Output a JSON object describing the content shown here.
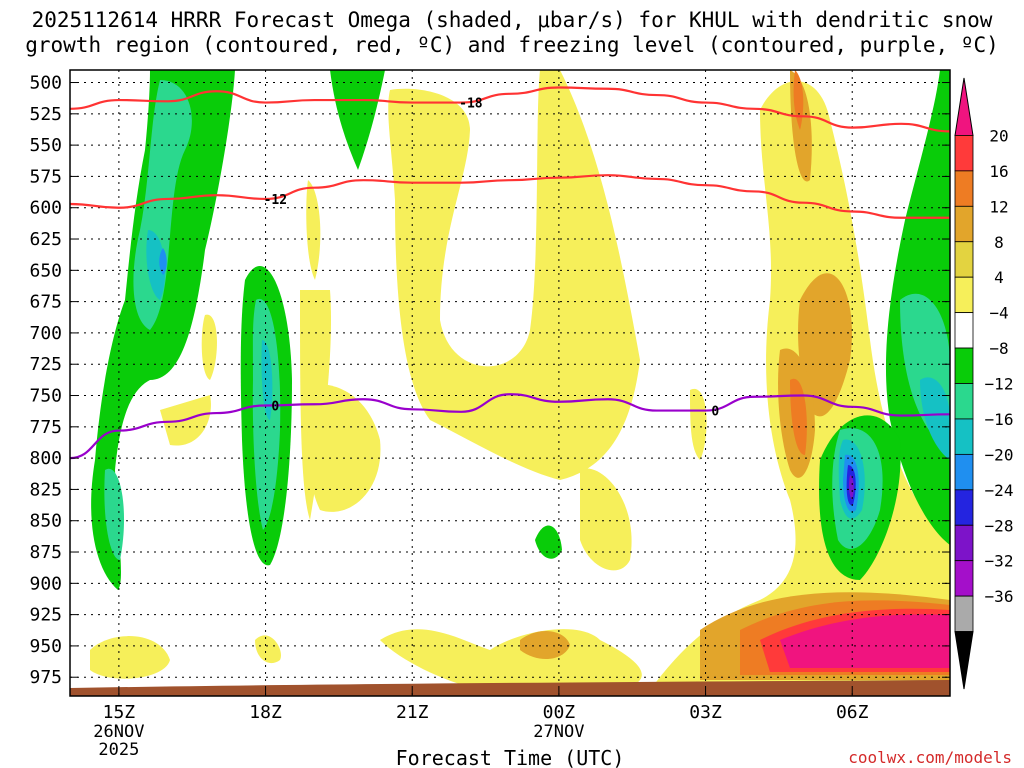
{
  "title_line1": "2025112614 HRRR Forecast Omega (shaded, μbar/s) for KHUL with dendritic snow",
  "title_line2": "growth region (contoured, red, ºC) and freezing level (contoured, purple, ºC)",
  "watermark": "coolwx.com/models",
  "chart_data": {
    "type": "contour",
    "title": "2025112614 HRRR Forecast Omega (shaded, μbar/s) for KHUL with dendritic snow growth region (contoured, red, ºC) and freezing level (contoured, purple, ºC)",
    "xlabel": "Forecast Time (UTC)",
    "ylabel": "",
    "x_range_hours_after_14Z": [
      0,
      18
    ],
    "y_axis": {
      "reversed": true,
      "ticks": [
        500,
        525,
        550,
        575,
        600,
        625,
        650,
        675,
        700,
        725,
        750,
        775,
        800,
        825,
        850,
        875,
        900,
        925,
        950,
        975
      ],
      "range_hPa": [
        490,
        990
      ]
    },
    "x_ticks": [
      {
        "hour": 1,
        "label": "15Z",
        "sub1": "26NOV",
        "sub2": "2025"
      },
      {
        "hour": 4,
        "label": "18Z",
        "sub1": "",
        "sub2": ""
      },
      {
        "hour": 7,
        "label": "21Z",
        "sub1": "",
        "sub2": ""
      },
      {
        "hour": 10,
        "label": "00Z",
        "sub1": "27NOV",
        "sub2": ""
      },
      {
        "hour": 13,
        "label": "03Z",
        "sub1": "",
        "sub2": ""
      },
      {
        "hour": 16,
        "label": "06Z",
        "sub1": "",
        "sub2": ""
      }
    ],
    "grid": true,
    "colorbar": {
      "labels": [
        "20",
        "16",
        "12",
        "8",
        "4",
        "−4",
        "−8",
        "−12",
        "−16",
        "−20",
        "−24",
        "−28",
        "−32",
        "−36"
      ],
      "colors": [
        "#f0147f",
        "#ff3a3a",
        "#ee7c23",
        "#e2a52b",
        "#e3d340",
        "#f6ef5a",
        "#ffffff",
        "#09cc09",
        "#2bd88e",
        "#15c1c4",
        "#1f8ff0",
        "#2424e0",
        "#7d13c9",
        "#a40fca",
        "#aaaaaa",
        "#000000"
      ]
    },
    "series": [
      {
        "name": "-18",
        "color": "#ff3333",
        "points": [
          [
            0,
            521
          ],
          [
            1,
            514
          ],
          [
            2,
            515
          ],
          [
            3,
            507
          ],
          [
            4,
            516
          ],
          [
            5,
            514
          ],
          [
            6,
            514
          ],
          [
            7,
            516
          ],
          [
            8,
            516
          ],
          [
            9,
            509
          ],
          [
            10,
            504
          ],
          [
            11,
            505
          ],
          [
            12,
            510
          ],
          [
            13,
            516
          ],
          [
            14,
            521
          ],
          [
            15,
            527
          ],
          [
            16,
            536
          ],
          [
            17,
            533
          ],
          [
            18,
            539
          ]
        ]
      },
      {
        "name": "-12",
        "color": "#ff3333",
        "points": [
          [
            0,
            597
          ],
          [
            1,
            600
          ],
          [
            2,
            593
          ],
          [
            3,
            590
          ],
          [
            4,
            593
          ],
          [
            5,
            584
          ],
          [
            6,
            578
          ],
          [
            7,
            580
          ],
          [
            8,
            580
          ],
          [
            9,
            578
          ],
          [
            10,
            576
          ],
          [
            11,
            574
          ],
          [
            12,
            577
          ],
          [
            13,
            582
          ],
          [
            14,
            587
          ],
          [
            15,
            596
          ],
          [
            16,
            603
          ],
          [
            17,
            608
          ],
          [
            18,
            608
          ]
        ]
      },
      {
        "name": "0",
        "color": "#9900cc",
        "points": [
          [
            0,
            800
          ],
          [
            1,
            778
          ],
          [
            2,
            771
          ],
          [
            3,
            764
          ],
          [
            4,
            758
          ],
          [
            5,
            757
          ],
          [
            6,
            753
          ],
          [
            7,
            761
          ],
          [
            8,
            763
          ],
          [
            9,
            749
          ],
          [
            10,
            755
          ],
          [
            11,
            753
          ],
          [
            12,
            762
          ],
          [
            13,
            762
          ],
          [
            14,
            751
          ],
          [
            15,
            750
          ],
          [
            16,
            759
          ],
          [
            17,
            766
          ],
          [
            18,
            765
          ]
        ]
      }
    ],
    "filled_regions": [
      {
        "value": "−4",
        "color": "#09cc09",
        "description": "negative omega band near 15Z, 500–880 hPa"
      },
      {
        "value": "−12",
        "color": "#15c1c4",
        "description": "core near 15Z–16Z"
      },
      {
        "value": "−8",
        "color": "#09cc09",
        "description": "negative omega column near 18Z, 600–860 hPa"
      },
      {
        "value": "4",
        "color": "#e3d340",
        "description": "broad positive omega area from 21Z to 03Z"
      },
      {
        "value": "20",
        "color": "#f0147f",
        "description": "strong positive omega near surface 05Z–09Z, 920–970 hPa"
      },
      {
        "value": "−24",
        "color": "#2424e0",
        "description": "strong negative omega core near 06Z, 780–830 hPa"
      }
    ]
  }
}
